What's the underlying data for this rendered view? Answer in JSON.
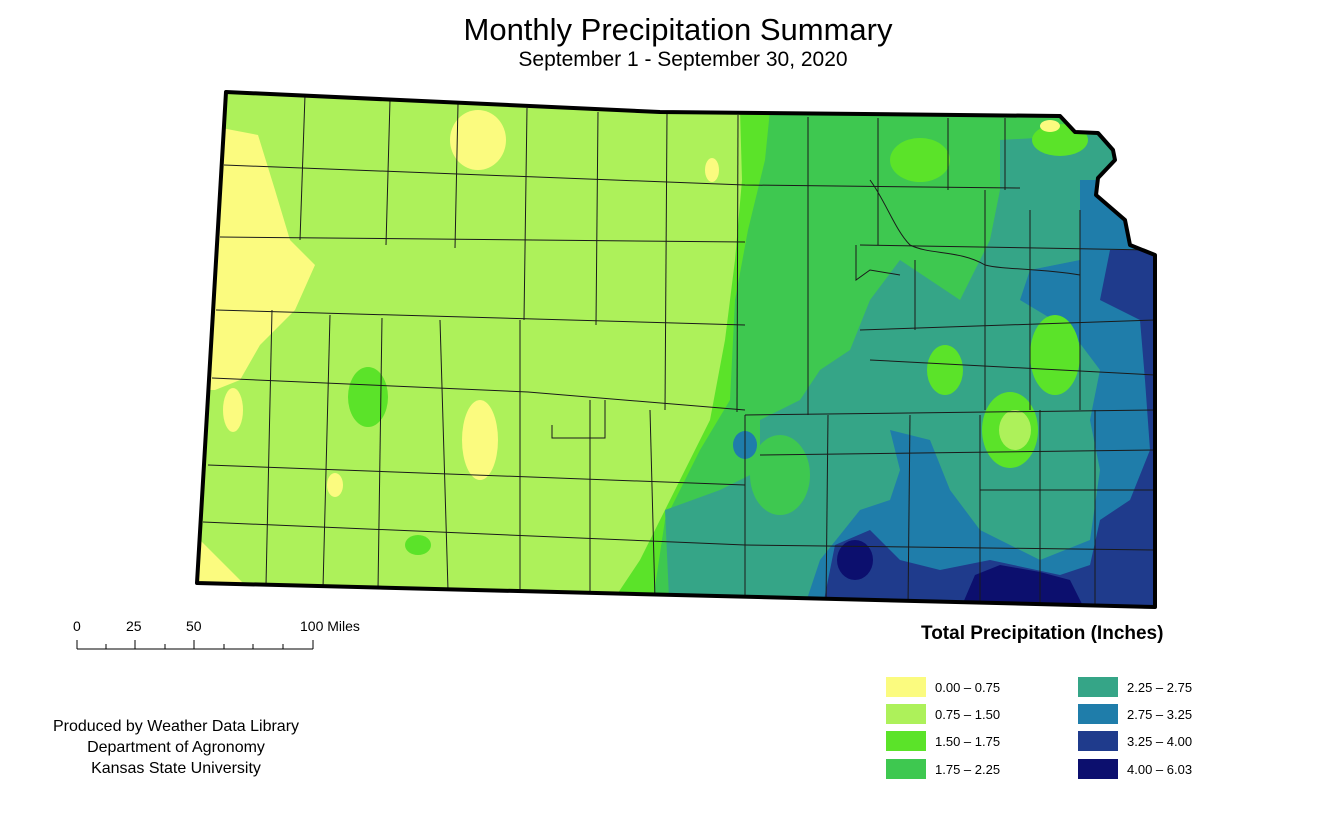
{
  "title": "Monthly Precipitation Summary",
  "subtitle": "September 1 - September 30, 2020",
  "scale_bar": {
    "labels": [
      "0",
      "25",
      "50",
      "100 Miles"
    ]
  },
  "credits": [
    "Produced by Weather Data Library",
    "Department of Agronomy",
    "Kansas State University"
  ],
  "legend": {
    "title": "Total Precipitation (Inches)",
    "items": [
      {
        "label": "0.00 – 0.75",
        "color": "#fbfb7f"
      },
      {
        "label": "0.75 – 1.50",
        "color": "#adf15a"
      },
      {
        "label": "1.50 – 1.75",
        "color": "#5be329"
      },
      {
        "label": "1.75 – 2.25",
        "color": "#3ec850"
      },
      {
        "label": "2.25 – 2.75",
        "color": "#35a587"
      },
      {
        "label": "2.75 – 3.25",
        "color": "#1f7daa"
      },
      {
        "label": "3.25 – 4.00",
        "color": "#1f3b8c"
      },
      {
        "label": "4.00 – 6.03",
        "color": "#0c0f6e"
      }
    ]
  }
}
